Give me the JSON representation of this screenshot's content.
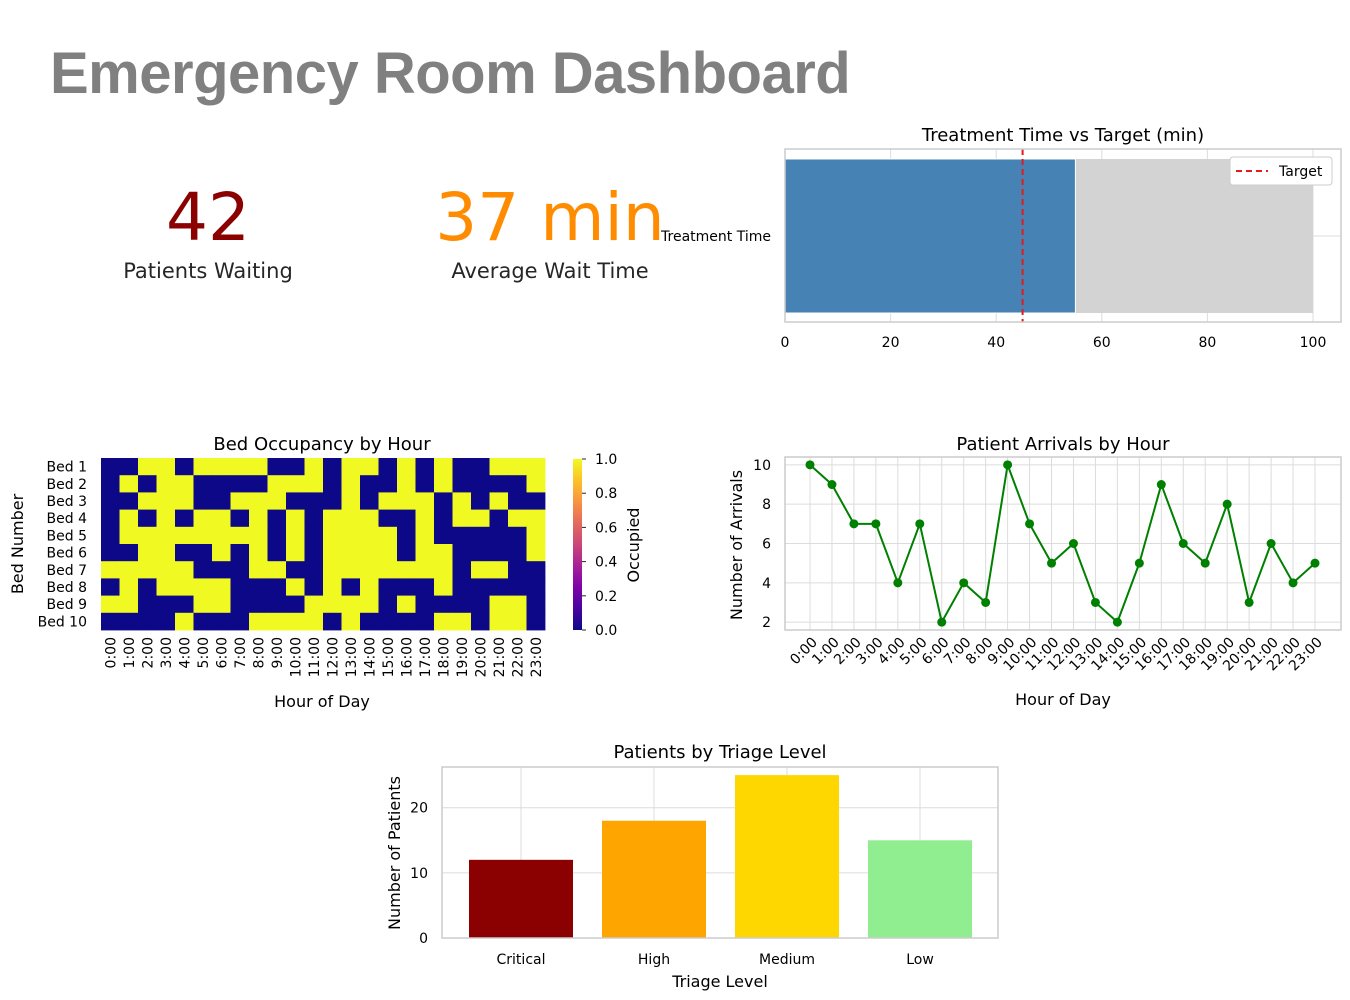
{
  "dashboard": {
    "title": "Emergency Room Dashboard"
  },
  "kpis": {
    "patients_waiting": {
      "value": "42",
      "label": "Patients Waiting",
      "color": "#8b0000"
    },
    "avg_wait_time": {
      "value": "37 min",
      "label": "Average Wait Time",
      "color": "#ff8c00"
    }
  },
  "chart_data": [
    {
      "id": "treatment",
      "type": "bar",
      "orientation": "horizontal",
      "title": "Treatment Time vs Target (min)",
      "categories": [
        "Treatment Time"
      ],
      "values": [
        55
      ],
      "background_value": 100,
      "target": 45,
      "legend": [
        "Target"
      ],
      "legend_position": "top-right",
      "xlim": [
        0,
        100
      ],
      "xticks": [
        "0",
        "20",
        "40",
        "60",
        "80",
        "100"
      ],
      "colors": {
        "bar": "#4682b4",
        "background": "#d3d3d3",
        "target": "#e41a1c"
      },
      "grid": true
    },
    {
      "id": "occupancy",
      "type": "heatmap",
      "title": "Bed Occupancy by Hour",
      "xlabel": "Hour of Day",
      "ylabel": "Bed Number",
      "colorbar_label": "Occupied",
      "colorbar_ticks": [
        "0.0",
        "0.2",
        "0.4",
        "0.6",
        "0.8",
        "1.0"
      ],
      "colormap": "plasma",
      "rows": [
        "Bed 1",
        "Bed 2",
        "Bed 3",
        "Bed 4",
        "Bed 5",
        "Bed 6",
        "Bed 7",
        "Bed 8",
        "Bed 9",
        "Bed 10"
      ],
      "columns": [
        "0:00",
        "1:00",
        "2:00",
        "3:00",
        "4:00",
        "5:00",
        "6:00",
        "7:00",
        "8:00",
        "9:00",
        "10:00",
        "11:00",
        "12:00",
        "13:00",
        "14:00",
        "15:00",
        "16:00",
        "17:00",
        "18:00",
        "19:00",
        "20:00",
        "21:00",
        "22:00",
        "23:00"
      ],
      "values": [
        [
          0,
          0,
          1,
          1,
          0,
          1,
          1,
          1,
          1,
          0,
          0,
          1,
          0,
          1,
          1,
          0,
          1,
          0,
          1,
          0,
          0,
          1,
          1,
          1
        ],
        [
          0,
          1,
          0,
          1,
          1,
          0,
          0,
          0,
          0,
          1,
          1,
          1,
          0,
          1,
          0,
          0,
          1,
          0,
          1,
          0,
          0,
          0,
          0,
          1
        ],
        [
          0,
          0,
          1,
          1,
          1,
          0,
          0,
          1,
          1,
          1,
          0,
          0,
          0,
          1,
          0,
          1,
          1,
          1,
          0,
          1,
          0,
          1,
          0,
          0
        ],
        [
          0,
          1,
          0,
          1,
          0,
          1,
          1,
          0,
          1,
          0,
          1,
          0,
          1,
          1,
          1,
          0,
          0,
          1,
          0,
          1,
          1,
          0,
          1,
          1
        ],
        [
          0,
          1,
          1,
          1,
          1,
          1,
          1,
          1,
          1,
          0,
          1,
          0,
          1,
          1,
          1,
          1,
          0,
          1,
          0,
          0,
          0,
          0,
          0,
          1
        ],
        [
          0,
          0,
          1,
          1,
          0,
          0,
          1,
          0,
          1,
          0,
          1,
          0,
          1,
          1,
          1,
          1,
          0,
          1,
          1,
          0,
          0,
          0,
          0,
          1
        ],
        [
          1,
          1,
          1,
          1,
          1,
          0,
          0,
          0,
          1,
          1,
          0,
          0,
          1,
          1,
          1,
          1,
          1,
          1,
          1,
          0,
          1,
          1,
          0,
          0
        ],
        [
          0,
          1,
          0,
          1,
          1,
          1,
          1,
          0,
          0,
          0,
          1,
          0,
          1,
          0,
          1,
          0,
          0,
          0,
          1,
          0,
          0,
          0,
          0,
          0
        ],
        [
          1,
          1,
          0,
          0,
          0,
          1,
          1,
          0,
          0,
          0,
          0,
          1,
          1,
          1,
          1,
          0,
          1,
          0,
          0,
          0,
          0,
          1,
          1,
          0
        ],
        [
          0,
          0,
          0,
          0,
          1,
          0,
          0,
          0,
          1,
          1,
          1,
          1,
          0,
          1,
          0,
          0,
          0,
          0,
          1,
          1,
          0,
          1,
          1,
          0
        ]
      ]
    },
    {
      "id": "arrivals",
      "type": "line",
      "title": "Patient Arrivals by Hour",
      "xlabel": "Hour of Day",
      "ylabel": "Number of Arrivals",
      "x": [
        "0:00",
        "1:00",
        "2:00",
        "3:00",
        "4:00",
        "5:00",
        "6:00",
        "7:00",
        "8:00",
        "9:00",
        "10:00",
        "11:00",
        "12:00",
        "13:00",
        "14:00",
        "15:00",
        "16:00",
        "17:00",
        "18:00",
        "19:00",
        "20:00",
        "21:00",
        "22:00",
        "23:00"
      ],
      "values": [
        10,
        9,
        7,
        7,
        4,
        7,
        2,
        4,
        3,
        10,
        7,
        5,
        6,
        3,
        2,
        5,
        9,
        6,
        5,
        8,
        3,
        6,
        4,
        5
      ],
      "ylim": [
        1.6,
        10.4
      ],
      "yticks": [
        "2",
        "4",
        "6",
        "8",
        "10"
      ],
      "color": "#008000",
      "grid": true
    },
    {
      "id": "triage",
      "type": "bar",
      "title": "Patients by Triage Level",
      "xlabel": "Triage Level",
      "ylabel": "Number of Patients",
      "categories": [
        "Critical",
        "High",
        "Medium",
        "Low"
      ],
      "values": [
        12,
        18,
        25,
        15
      ],
      "colors": [
        "#8b0000",
        "#ffa500",
        "#ffd700",
        "#90ee90"
      ],
      "ylim": [
        0,
        26.25
      ],
      "yticks": [
        "0",
        "10",
        "20"
      ],
      "grid": true
    }
  ]
}
